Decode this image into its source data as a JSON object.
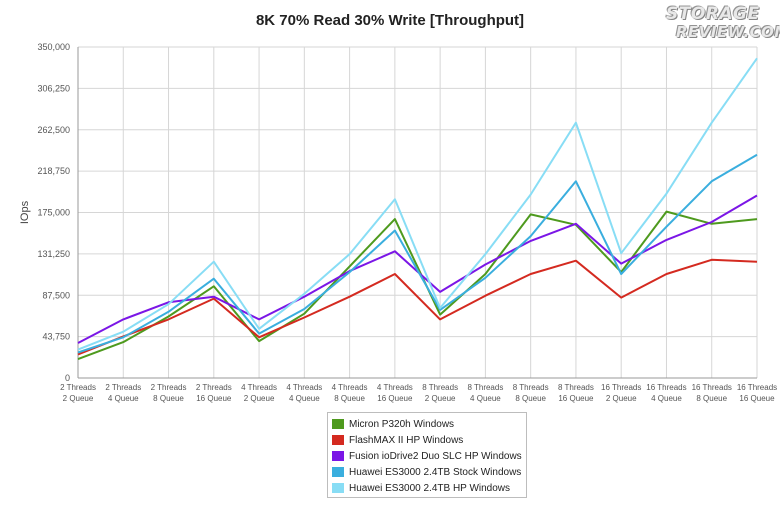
{
  "chart_data": {
    "type": "line",
    "title": "8K 70% Read 30% Write [Throughput]",
    "xlabel": "",
    "ylabel": "IOps",
    "ylim": [
      0,
      350000
    ],
    "yticks": [
      "0",
      "43,750",
      "87,500",
      "131,250",
      "175,000",
      "218,750",
      "262,500",
      "306,250",
      "350,000"
    ],
    "grid": true,
    "legend_position": "bottom",
    "categories": [
      [
        "2 Threads",
        "2 Queue"
      ],
      [
        "2 Threads",
        "4 Queue"
      ],
      [
        "2 Threads",
        "8 Queue"
      ],
      [
        "2 Threads",
        "16 Queue"
      ],
      [
        "4 Threads",
        "2 Queue"
      ],
      [
        "4 Threads",
        "4 Queue"
      ],
      [
        "4 Threads",
        "8 Queue"
      ],
      [
        "4 Threads",
        "16 Queue"
      ],
      [
        "8 Threads",
        "2 Queue"
      ],
      [
        "8 Threads",
        "4 Queue"
      ],
      [
        "8 Threads",
        "8 Queue"
      ],
      [
        "8 Threads",
        "16 Queue"
      ],
      [
        "16 Threads",
        "2 Queue"
      ],
      [
        "16 Threads",
        "4 Queue"
      ],
      [
        "16 Threads",
        "8 Queue"
      ],
      [
        "16 Threads",
        "16 Queue"
      ]
    ],
    "series": [
      {
        "name": "Micron P320h Windows",
        "color": "#4e9a1e",
        "values": [
          20000,
          38000,
          65000,
          97000,
          39000,
          68000,
          118000,
          168000,
          67000,
          110000,
          173000,
          162000,
          112000,
          176000,
          163000,
          168000
        ]
      },
      {
        "name": "FlashMAX II HP Windows",
        "color": "#d42a20",
        "values": [
          25000,
          44000,
          62000,
          84000,
          43000,
          64000,
          86000,
          110000,
          62000,
          87000,
          110000,
          124000,
          85000,
          110000,
          125000,
          123000
        ]
      },
      {
        "name": "Fusion ioDrive2 Duo SLC HP Windows",
        "color": "#7b16e6",
        "values": [
          37000,
          62000,
          80000,
          86000,
          62000,
          86000,
          113000,
          134000,
          91000,
          120000,
          145000,
          163000,
          121000,
          146000,
          165000,
          193000
        ]
      },
      {
        "name": "Huawei ES3000 2.4TB Stock Windows",
        "color": "#3aaede",
        "values": [
          27000,
          43000,
          70000,
          105000,
          47000,
          73000,
          112000,
          156000,
          72000,
          106000,
          150000,
          208000,
          110000,
          160000,
          208000,
          236000
        ]
      },
      {
        "name": "Huawei ES3000 2.4TB HP Windows",
        "color": "#88ddf5",
        "values": [
          30000,
          49000,
          78000,
          123000,
          52000,
          89000,
          131000,
          189000,
          74000,
          131000,
          194000,
          270000,
          132000,
          195000,
          270000,
          338000
        ]
      }
    ]
  },
  "branding": {
    "logo_line1": "STORAGE",
    "logo_line2": "REVIEW.COM"
  }
}
